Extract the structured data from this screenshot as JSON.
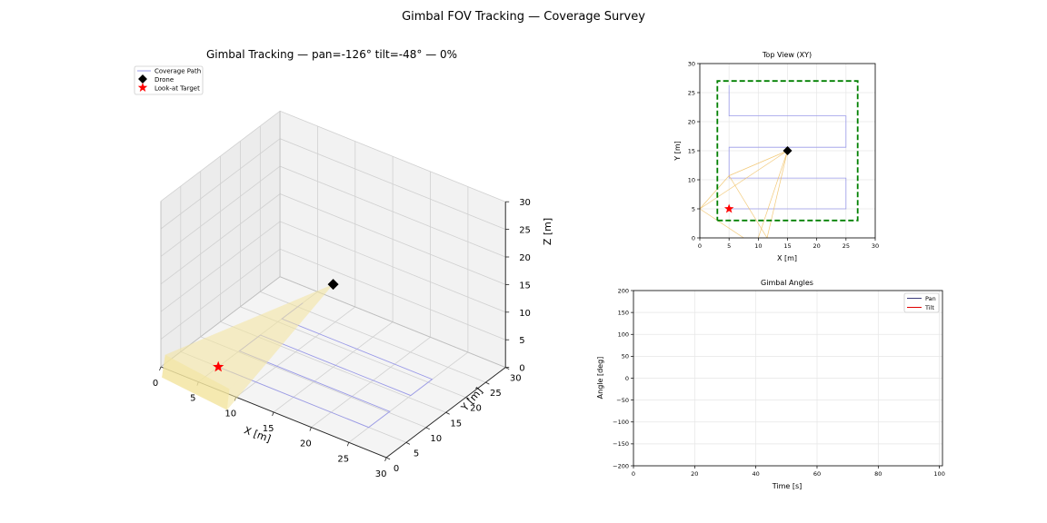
{
  "figure": {
    "suptitle": "Gimbal FOV Tracking — Coverage Survey"
  },
  "chart_data": [
    {
      "id": "scene3d",
      "type": "scatter",
      "title": "Gimbal Tracking — pan=-126° tilt=-48° — 0%",
      "xlabel": "X [m]",
      "ylabel": "Y [m]",
      "zlabel": "Z [m]",
      "xlim": [
        0,
        30
      ],
      "ylim": [
        0,
        30
      ],
      "zlim": [
        0,
        30
      ],
      "xticks": [
        "0",
        "5",
        "10",
        "15",
        "20",
        "25",
        "30"
      ],
      "yticks": [
        "0",
        "5",
        "10",
        "15",
        "20",
        "25",
        "30"
      ],
      "zticks": [
        "0",
        "5",
        "10",
        "15",
        "20",
        "25",
        "30"
      ],
      "legend": {
        "position": "top-left",
        "entries": [
          "Coverage Path",
          "Drone",
          "Look-at Target"
        ]
      },
      "coverage_path": [
        [
          5,
          5,
          0
        ],
        [
          25,
          5,
          0
        ],
        [
          25,
          10.3,
          0
        ],
        [
          5,
          10.3,
          0
        ],
        [
          5,
          15.6,
          0
        ],
        [
          25,
          15.6,
          0
        ],
        [
          25,
          21,
          0
        ],
        [
          5,
          21,
          0
        ],
        [
          5,
          26.3,
          0
        ]
      ],
      "drone": [
        15,
        15,
        15
      ],
      "target": [
        5,
        5,
        0
      ],
      "fov_footprint": [
        [
          8.5,
          1.2,
          0
        ],
        [
          10.7,
          -3.6,
          0
        ],
        [
          1.3,
          -2.2,
          0
        ],
        [
          -1,
          3,
          0
        ]
      ]
    },
    {
      "id": "topview",
      "type": "line",
      "title": "Top View (XY)",
      "xlabel": "X [m]",
      "ylabel": "Y [m]",
      "xlim": [
        0,
        30
      ],
      "ylim": [
        0,
        30
      ],
      "xticks": [
        "0",
        "5",
        "10",
        "15",
        "20",
        "25",
        "30"
      ],
      "yticks": [
        "0",
        "5",
        "10",
        "15",
        "20",
        "25",
        "30"
      ],
      "coverage_path": [
        [
          5,
          5
        ],
        [
          25,
          5
        ],
        [
          25,
          10.3
        ],
        [
          5,
          10.3
        ],
        [
          5,
          15.6
        ],
        [
          25,
          15.6
        ],
        [
          25,
          21
        ],
        [
          5,
          21
        ],
        [
          5,
          26.3
        ]
      ],
      "boundary": [
        [
          3,
          3
        ],
        [
          27,
          3
        ],
        [
          27,
          27
        ],
        [
          3,
          27
        ],
        [
          3,
          3
        ]
      ],
      "fov_rays_from": [
        15,
        15
      ],
      "fov_ray_ends": [
        [
          10,
          0
        ],
        [
          11.5,
          0
        ],
        [
          0,
          5
        ],
        [
          5,
          10.7
        ]
      ],
      "footprint_edges": [
        [
          [
            0,
            5
          ],
          [
            7.5,
            0
          ]
        ],
        [
          [
            0,
            5
          ],
          [
            5,
            10.7
          ]
        ],
        [
          [
            5,
            10.7
          ],
          [
            11.5,
            0
          ]
        ]
      ],
      "drone": [
        15,
        15
      ],
      "target": [
        5,
        5
      ]
    },
    {
      "id": "angles",
      "type": "line",
      "title": "Gimbal Angles",
      "xlabel": "Time [s]",
      "ylabel": "Angle [deg]",
      "xlim": [
        0,
        101
      ],
      "ylim": [
        -200,
        200
      ],
      "xticks": [
        "0",
        "20",
        "40",
        "60",
        "80",
        "100"
      ],
      "yticks": [
        "200",
        "150",
        "100",
        "50",
        "0",
        "−50",
        "−100",
        "−150",
        "−200"
      ],
      "legend": {
        "position": "top-right",
        "entries": [
          "Pan",
          "Tilt"
        ]
      },
      "series": [
        {
          "name": "Pan",
          "color": "#3b3b7a",
          "x": [],
          "y": []
        },
        {
          "name": "Tilt",
          "color": "#e00000",
          "x": [],
          "y": []
        }
      ]
    }
  ],
  "colors": {
    "path": "#9a9ae8",
    "drone": "#000000",
    "target": "#ff0000",
    "fov": "#f3e6a0",
    "boundary": "#008000",
    "ray": "#f0c060",
    "grid": "#d0d0d0",
    "pane": "#f2f2f2"
  }
}
